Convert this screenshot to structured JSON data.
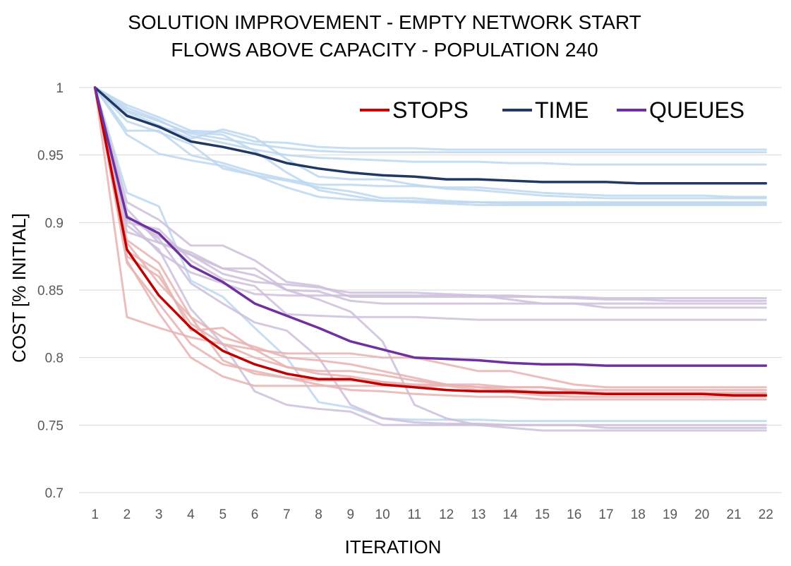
{
  "chart_data": {
    "type": "line",
    "title": [
      "SOLUTION IMPROVEMENT - EMPTY NETWORK START",
      "FLOWS ABOVE CAPACITY  -  POPULATION 240"
    ],
    "xlabel": "ITERATION",
    "ylabel": "COST [% INITIAL]",
    "x": [
      1,
      2,
      3,
      4,
      5,
      6,
      7,
      8,
      9,
      10,
      11,
      12,
      13,
      14,
      15,
      16,
      17,
      18,
      19,
      20,
      21,
      22
    ],
    "ylim": [
      0.7,
      1.0
    ],
    "yticks": [
      0.7,
      0.75,
      0.8,
      0.85,
      0.9,
      0.95,
      1
    ],
    "ytick_labels": [
      "0.7",
      "0.75",
      "0.8",
      "0.85",
      "0.9",
      "0.95",
      "1"
    ],
    "grid": true,
    "legend": {
      "position": "top-right",
      "entries": [
        "STOPS",
        "TIME",
        "QUEUES"
      ]
    },
    "colors": {
      "stops": "#c00000",
      "time": "#1f3864",
      "queues": "#7030a0",
      "stops_light": "#e8b3b3",
      "time_light": "#bdd7ee",
      "queues_light": "#ccc0da",
      "grid": "#d9d9d9"
    },
    "series": [
      {
        "name": "STOPS",
        "group": "stops",
        "emphasis": true,
        "values": [
          1,
          0.88,
          0.846,
          0.822,
          0.805,
          0.795,
          0.788,
          0.784,
          0.784,
          0.78,
          0.778,
          0.776,
          0.775,
          0.775,
          0.774,
          0.774,
          0.773,
          0.773,
          0.773,
          0.773,
          0.772,
          0.772
        ]
      },
      {
        "name": "TIME",
        "group": "time",
        "emphasis": true,
        "values": [
          1,
          0.979,
          0.971,
          0.96,
          0.956,
          0.951,
          0.944,
          0.94,
          0.937,
          0.935,
          0.934,
          0.932,
          0.932,
          0.931,
          0.93,
          0.93,
          0.93,
          0.929,
          0.929,
          0.929,
          0.929,
          0.929
        ]
      },
      {
        "name": "QUEUES",
        "group": "queues",
        "emphasis": true,
        "values": [
          1,
          0.904,
          0.892,
          0.868,
          0.856,
          0.84,
          0.831,
          0.822,
          0.812,
          0.806,
          0.8,
          0.799,
          0.798,
          0.796,
          0.795,
          0.795,
          0.794,
          0.794,
          0.794,
          0.794,
          0.794,
          0.794
        ]
      },
      {
        "group": "time",
        "values": [
          1,
          0.987,
          0.978,
          0.968,
          0.967,
          0.96,
          0.959,
          0.956,
          0.955,
          0.955,
          0.955,
          0.954,
          0.954,
          0.954,
          0.954,
          0.954,
          0.954,
          0.954,
          0.954,
          0.954,
          0.954,
          0.954
        ]
      },
      {
        "group": "time",
        "values": [
          1,
          0.983,
          0.975,
          0.966,
          0.962,
          0.958,
          0.955,
          0.953,
          0.952,
          0.952,
          0.952,
          0.952,
          0.952,
          0.952,
          0.952,
          0.952,
          0.952,
          0.952,
          0.952,
          0.952,
          0.952,
          0.952
        ]
      },
      {
        "group": "time",
        "values": [
          1,
          0.968,
          0.968,
          0.95,
          0.944,
          0.937,
          0.932,
          0.928,
          0.928,
          0.927,
          0.927,
          0.926,
          0.926,
          0.924,
          0.922,
          0.921,
          0.92,
          0.92,
          0.92,
          0.92,
          0.919,
          0.919
        ]
      },
      {
        "group": "time",
        "values": [
          1,
          0.965,
          0.951,
          0.946,
          0.942,
          0.935,
          0.926,
          0.919,
          0.917,
          0.916,
          0.916,
          0.915,
          0.915,
          0.915,
          0.915,
          0.915,
          0.915,
          0.915,
          0.915,
          0.915,
          0.915,
          0.915
        ]
      },
      {
        "group": "time",
        "values": [
          1,
          0.975,
          0.967,
          0.958,
          0.94,
          0.935,
          0.931,
          0.926,
          0.923,
          0.918,
          0.918,
          0.916,
          0.915,
          0.914,
          0.914,
          0.914,
          0.914,
          0.914,
          0.914,
          0.914,
          0.914,
          0.914
        ]
      },
      {
        "group": "time",
        "values": [
          1,
          0.985,
          0.976,
          0.964,
          0.959,
          0.954,
          0.95,
          0.948,
          0.947,
          0.946,
          0.945,
          0.945,
          0.945,
          0.944,
          0.944,
          0.943,
          0.943,
          0.943,
          0.943,
          0.943,
          0.943,
          0.943
        ]
      },
      {
        "group": "time",
        "values": [
          1,
          0.982,
          0.972,
          0.962,
          0.969,
          0.963,
          0.947,
          0.934,
          0.932,
          0.932,
          0.928,
          0.925,
          0.924,
          0.922,
          0.92,
          0.919,
          0.918,
          0.918,
          0.918,
          0.918,
          0.918,
          0.918
        ]
      },
      {
        "group": "time",
        "values": [
          1,
          0.98,
          0.97,
          0.967,
          0.965,
          0.953,
          0.937,
          0.924,
          0.92,
          0.916,
          0.915,
          0.914,
          0.913,
          0.913,
          0.913,
          0.913,
          0.913,
          0.913,
          0.913,
          0.913,
          0.913,
          0.913
        ]
      },
      {
        "group": "time",
        "values": [
          1,
          0.922,
          0.912,
          0.857,
          0.845,
          0.822,
          0.8,
          0.767,
          0.763,
          0.755,
          0.754,
          0.754,
          0.754,
          0.753,
          0.753,
          0.753,
          0.753,
          0.753,
          0.753,
          0.753,
          0.753,
          0.753
        ]
      },
      {
        "group": "queues",
        "values": [
          1,
          0.915,
          0.902,
          0.883,
          0.883,
          0.872,
          0.856,
          0.853,
          0.845,
          0.845,
          0.845,
          0.845,
          0.845,
          0.845,
          0.845,
          0.845,
          0.844,
          0.844,
          0.844,
          0.844,
          0.844,
          0.844
        ]
      },
      {
        "group": "queues",
        "values": [
          1,
          0.91,
          0.885,
          0.876,
          0.866,
          0.866,
          0.85,
          0.849,
          0.842,
          0.84,
          0.84,
          0.84,
          0.84,
          0.84,
          0.84,
          0.84,
          0.84,
          0.84,
          0.84,
          0.84,
          0.84,
          0.84
        ]
      },
      {
        "group": "queues",
        "values": [
          1,
          0.905,
          0.89,
          0.876,
          0.862,
          0.856,
          0.854,
          0.852,
          0.848,
          0.848,
          0.848,
          0.847,
          0.846,
          0.846,
          0.845,
          0.844,
          0.843,
          0.843,
          0.842,
          0.842,
          0.842,
          0.842
        ]
      },
      {
        "group": "queues",
        "values": [
          1,
          0.903,
          0.878,
          0.863,
          0.855,
          0.847,
          0.846,
          0.846,
          0.846,
          0.846,
          0.846,
          0.846,
          0.846,
          0.843,
          0.84,
          0.84,
          0.837,
          0.837,
          0.837,
          0.837,
          0.837,
          0.837
        ]
      },
      {
        "group": "queues",
        "values": [
          1,
          0.9,
          0.895,
          0.872,
          0.858,
          0.853,
          0.832,
          0.831,
          0.83,
          0.83,
          0.83,
          0.829,
          0.828,
          0.828,
          0.828,
          0.828,
          0.828,
          0.828,
          0.828,
          0.828,
          0.828,
          0.828
        ]
      },
      {
        "group": "queues",
        "values": [
          1,
          0.905,
          0.888,
          0.855,
          0.84,
          0.826,
          0.82,
          0.8,
          0.765,
          0.755,
          0.752,
          0.751,
          0.751,
          0.75,
          0.75,
          0.75,
          0.75,
          0.75,
          0.75,
          0.75,
          0.75,
          0.75
        ]
      },
      {
        "group": "queues",
        "values": [
          1,
          0.898,
          0.88,
          0.836,
          0.81,
          0.775,
          0.765,
          0.762,
          0.76,
          0.75,
          0.75,
          0.75,
          0.75,
          0.75,
          0.75,
          0.75,
          0.748,
          0.748,
          0.748,
          0.748,
          0.748,
          0.748
        ]
      },
      {
        "group": "queues",
        "values": [
          1,
          0.893,
          0.885,
          0.878,
          0.866,
          0.861,
          0.85,
          0.843,
          0.834,
          0.812,
          0.765,
          0.755,
          0.75,
          0.748,
          0.746,
          0.746,
          0.746,
          0.746,
          0.746,
          0.746,
          0.746,
          0.746
        ]
      },
      {
        "group": "stops",
        "values": [
          1,
          0.83,
          0.822,
          0.815,
          0.81,
          0.806,
          0.803,
          0.803,
          0.803,
          0.8,
          0.8,
          0.795,
          0.79,
          0.79,
          0.785,
          0.78,
          0.778,
          0.778,
          0.778,
          0.778,
          0.778,
          0.778
        ]
      },
      {
        "group": "stops",
        "values": [
          1,
          0.875,
          0.86,
          0.825,
          0.81,
          0.8,
          0.793,
          0.79,
          0.79,
          0.787,
          0.783,
          0.78,
          0.778,
          0.778,
          0.778,
          0.776,
          0.776,
          0.776,
          0.776,
          0.776,
          0.776,
          0.776
        ]
      },
      {
        "group": "stops",
        "values": [
          1,
          0.887,
          0.87,
          0.83,
          0.798,
          0.788,
          0.785,
          0.783,
          0.783,
          0.782,
          0.78,
          0.78,
          0.78,
          0.778,
          0.778,
          0.775,
          0.774,
          0.774,
          0.774,
          0.774,
          0.774,
          0.774
        ]
      },
      {
        "group": "stops",
        "values": [
          1,
          0.872,
          0.833,
          0.8,
          0.786,
          0.779,
          0.779,
          0.779,
          0.779,
          0.779,
          0.779,
          0.779,
          0.776,
          0.776,
          0.773,
          0.773,
          0.773,
          0.773,
          0.773,
          0.773,
          0.773,
          0.773
        ]
      },
      {
        "group": "stops",
        "values": [
          1,
          0.87,
          0.84,
          0.81,
          0.795,
          0.79,
          0.785,
          0.78,
          0.776,
          0.775,
          0.773,
          0.772,
          0.771,
          0.771,
          0.769,
          0.769,
          0.769,
          0.769,
          0.769,
          0.769,
          0.769,
          0.769
        ]
      },
      {
        "group": "stops",
        "values": [
          1,
          0.879,
          0.864,
          0.82,
          0.822,
          0.806,
          0.793,
          0.788,
          0.786,
          0.782,
          0.779,
          0.776,
          0.775,
          0.774,
          0.772,
          0.771,
          0.771,
          0.771,
          0.771,
          0.771,
          0.771,
          0.771
        ]
      },
      {
        "group": "stops",
        "values": [
          1,
          0.885,
          0.855,
          0.83,
          0.815,
          0.808,
          0.8,
          0.798,
          0.795,
          0.79,
          0.785,
          0.78,
          0.778,
          0.776,
          0.775,
          0.774,
          0.773,
          0.773,
          0.773,
          0.773,
          0.773,
          0.773
        ]
      }
    ]
  }
}
